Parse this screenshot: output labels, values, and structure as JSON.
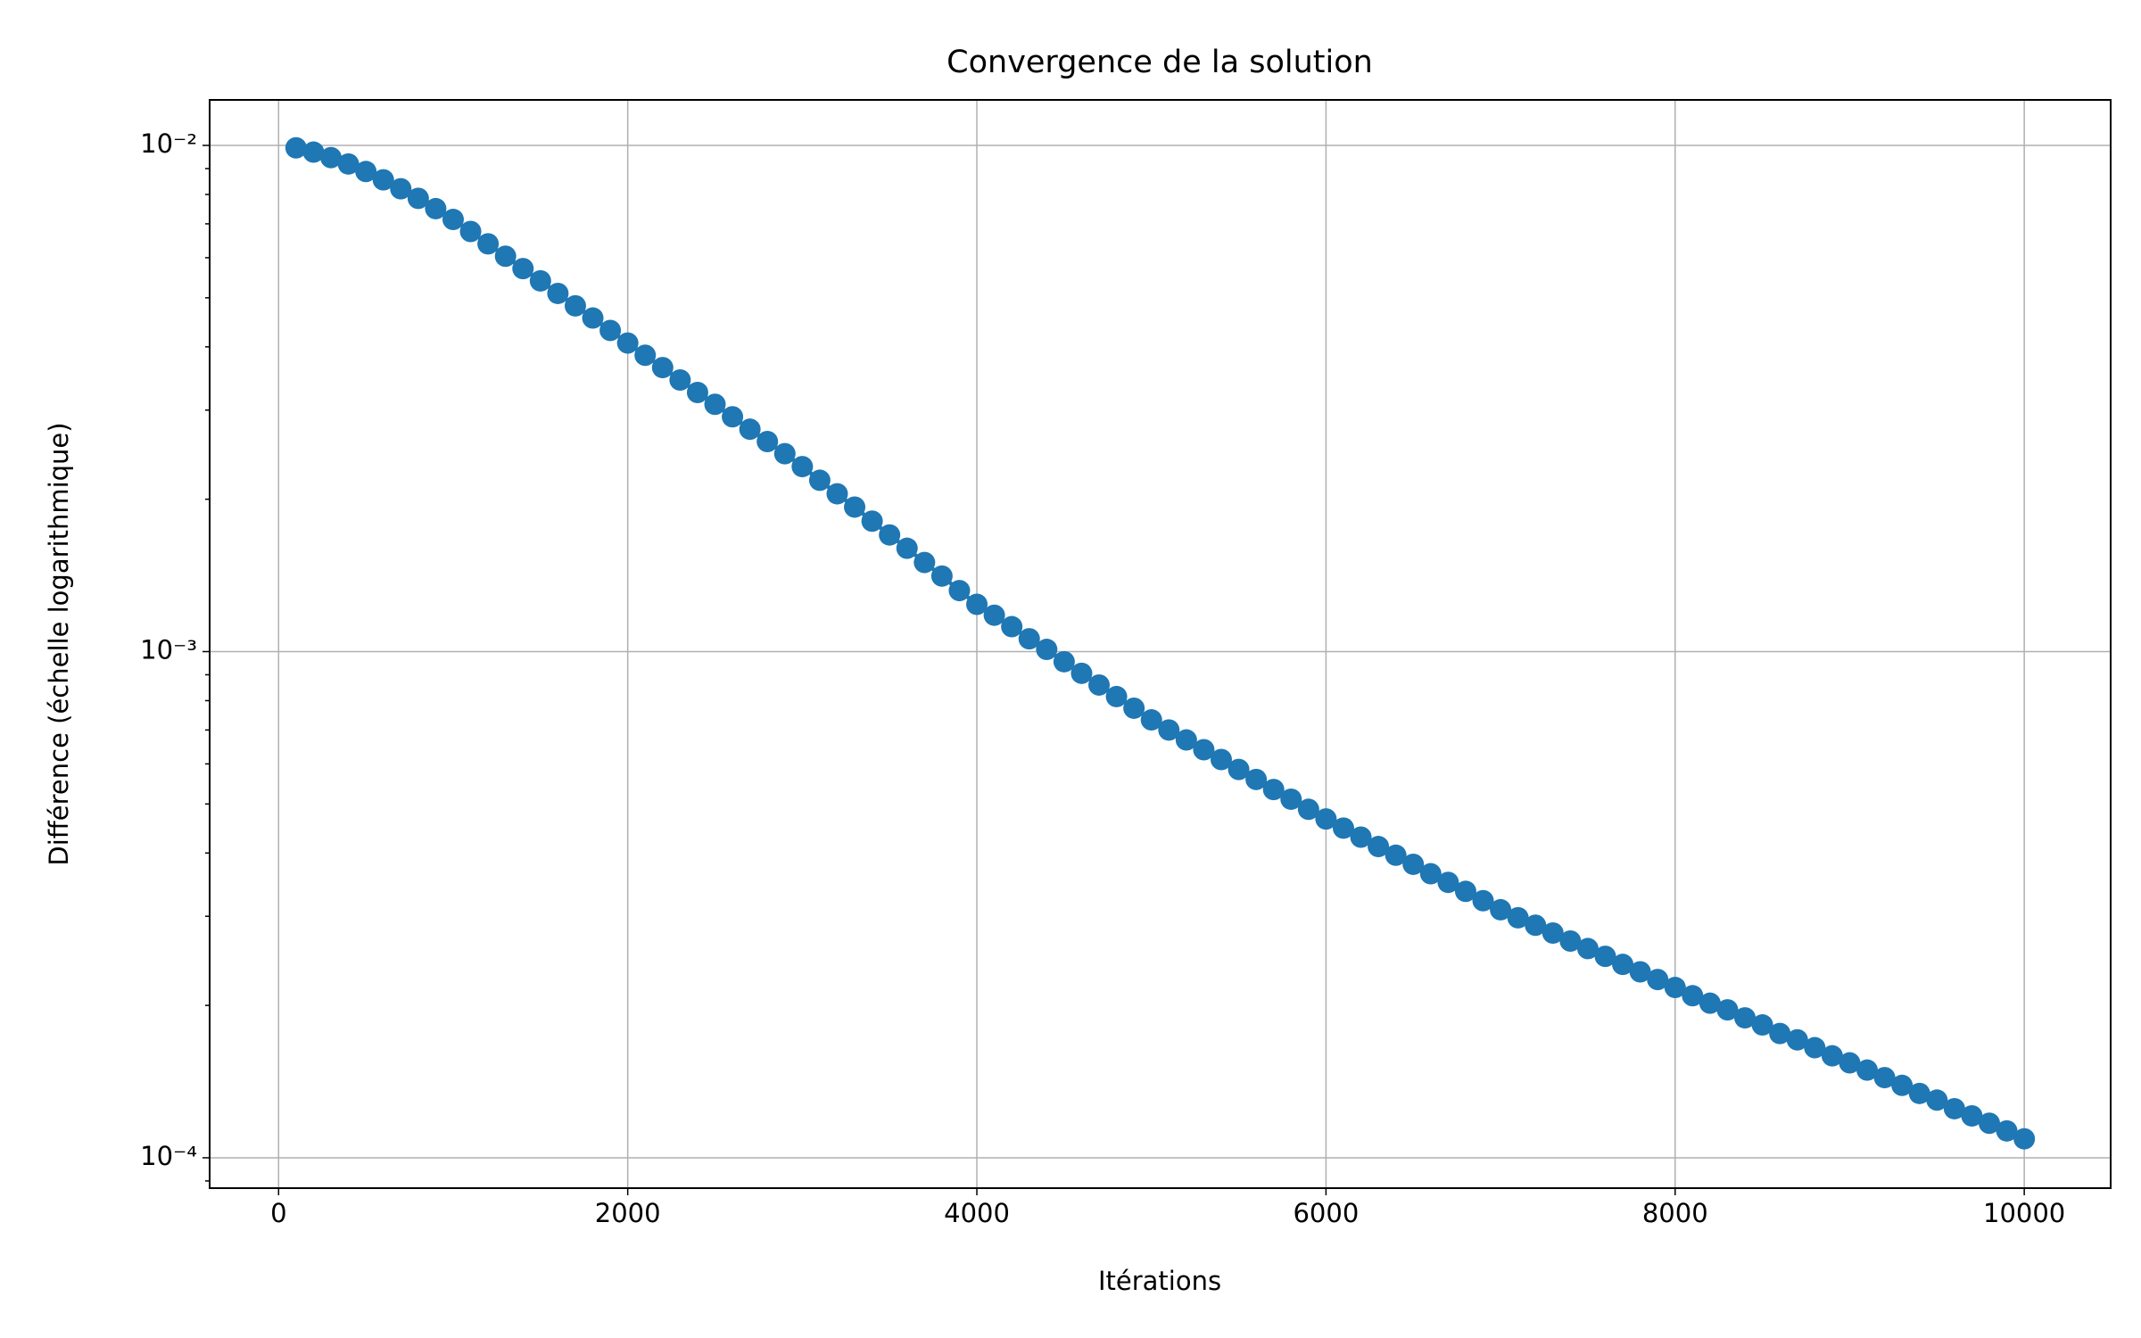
{
  "chart_data": {
    "type": "line",
    "title": "Convergence de la solution",
    "x_label": "Itérations",
    "y_label": "Différence (échelle logarithmique)",
    "yscale": "log",
    "grid": true,
    "color": "#1f77b4",
    "marker": "circle",
    "x": [
      100,
      200,
      300,
      400,
      500,
      600,
      700,
      800,
      900,
      1000,
      1100,
      1200,
      1300,
      1400,
      1500,
      1600,
      1700,
      1800,
      1900,
      2000,
      2100,
      2200,
      2300,
      2400,
      2500,
      2600,
      2700,
      2800,
      2900,
      3000,
      3100,
      3200,
      3300,
      3400,
      3500,
      3600,
      3700,
      3800,
      3900,
      4000,
      4100,
      4200,
      4300,
      4400,
      4500,
      4600,
      4700,
      4800,
      4900,
      5000,
      5100,
      5200,
      5300,
      5400,
      5500,
      5600,
      5700,
      5800,
      5900,
      6000,
      6100,
      6200,
      6300,
      6400,
      6500,
      6600,
      6700,
      6800,
      6900,
      7000,
      7100,
      7200,
      7300,
      7400,
      7500,
      7600,
      7700,
      7800,
      7900,
      8000,
      8100,
      8200,
      8300,
      8400,
      8500,
      8600,
      8700,
      8800,
      8900,
      9000,
      9100,
      9200,
      9300,
      9400,
      9500,
      9600,
      9700,
      9800,
      9900,
      10000
    ],
    "values": [
      0.00989,
      0.0097,
      0.00946,
      0.00919,
      0.00888,
      0.00855,
      0.00821,
      0.00786,
      0.0075,
      0.00714,
      0.00676,
      0.00639,
      0.00604,
      0.00571,
      0.0054,
      0.0051,
      0.00482,
      0.00456,
      0.00431,
      0.00407,
      0.00385,
      0.00364,
      0.00344,
      0.00325,
      0.00308,
      0.00291,
      0.00275,
      0.0026,
      0.00246,
      0.00232,
      0.00218,
      0.00205,
      0.00193,
      0.00181,
      0.0017,
      0.0016,
      0.0015,
      0.00141,
      0.00132,
      0.00124,
      0.00118,
      0.00112,
      0.00106,
      0.00101,
      0.000955,
      0.000906,
      0.000859,
      0.000815,
      0.000773,
      0.000733,
      0.0007,
      0.000669,
      0.00064,
      0.000612,
      0.000585,
      0.000559,
      0.000534,
      0.000511,
      0.000488,
      0.000467,
      0.000448,
      0.00043,
      0.000412,
      0.000396,
      0.00038,
      0.000364,
      0.00035,
      0.000336,
      0.000322,
      0.000309,
      0.000298,
      0.000288,
      0.000278,
      0.000268,
      0.000259,
      0.00025,
      0.000241,
      0.000233,
      0.000225,
      0.000217,
      0.000209,
      0.000202,
      0.000196,
      0.000189,
      0.000183,
      0.000176,
      0.000171,
      0.000165,
      0.000159,
      0.000154,
      0.000149,
      0.000144,
      0.000139,
      0.000134,
      0.00013,
      0.000125,
      0.000121,
      0.000117,
      0.000113,
      0.000109
    ],
    "xlim": [
      -395,
      10495
    ],
    "xticks": [
      0,
      2000,
      4000,
      6000,
      8000,
      10000
    ],
    "ylim": [
      8.71e-05,
      0.0123
    ],
    "yticks": [
      {
        "value": 0.0001,
        "label": "10⁻⁴"
      },
      {
        "value": 0.001,
        "label": "10⁻³"
      },
      {
        "value": 0.01,
        "label": "10⁻²"
      }
    ],
    "yticks_minor": [
      9e-05,
      0.0002,
      0.0003,
      0.0004,
      0.0005,
      0.0006,
      0.0007,
      0.0008,
      0.0009,
      0.002,
      0.003,
      0.004,
      0.005,
      0.006,
      0.007,
      0.008,
      0.009
    ]
  }
}
